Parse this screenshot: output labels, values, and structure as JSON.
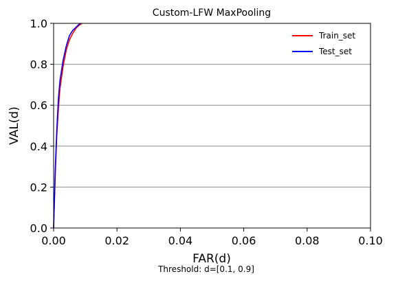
{
  "chart_data": {
    "type": "line",
    "title": "Custom-LFW MaxPooling",
    "xlabel": "FAR(d)",
    "ylabel": "VAL(d)",
    "xlim": [
      0.0,
      0.1
    ],
    "ylim": [
      0.0,
      1.0
    ],
    "xticks": [
      "0.00",
      "0.02",
      "0.04",
      "0.06",
      "0.08",
      "0.10"
    ],
    "yticks": [
      "0.0",
      "0.2",
      "0.4",
      "0.6",
      "0.8",
      "1.0"
    ],
    "xtick_values": [
      0.0,
      0.02,
      0.04,
      0.06,
      0.08,
      0.1
    ],
    "ytick_values": [
      0.0,
      0.2,
      0.4,
      0.6,
      0.8,
      1.0
    ],
    "grid": "horizontal",
    "legend_position": "top-right",
    "note": "Threshold: d=[0.1, 0.9]",
    "series": [
      {
        "name": "Train_set",
        "color": "#ff0000",
        "x": [
          0.0,
          0.0005,
          0.001,
          0.0015,
          0.002,
          0.003,
          0.004,
          0.005,
          0.006,
          0.007,
          0.008,
          0.009
        ],
        "y": [
          0.0,
          0.25,
          0.45,
          0.58,
          0.68,
          0.79,
          0.87,
          0.92,
          0.95,
          0.975,
          0.99,
          1.0
        ]
      },
      {
        "name": "Test_set",
        "color": "#0000ff",
        "x": [
          0.0,
          0.0005,
          0.001,
          0.0015,
          0.002,
          0.003,
          0.004,
          0.005,
          0.006,
          0.007,
          0.008,
          0.0085
        ],
        "y": [
          0.0,
          0.28,
          0.48,
          0.63,
          0.72,
          0.82,
          0.89,
          0.94,
          0.965,
          0.98,
          0.995,
          1.0
        ]
      }
    ]
  }
}
